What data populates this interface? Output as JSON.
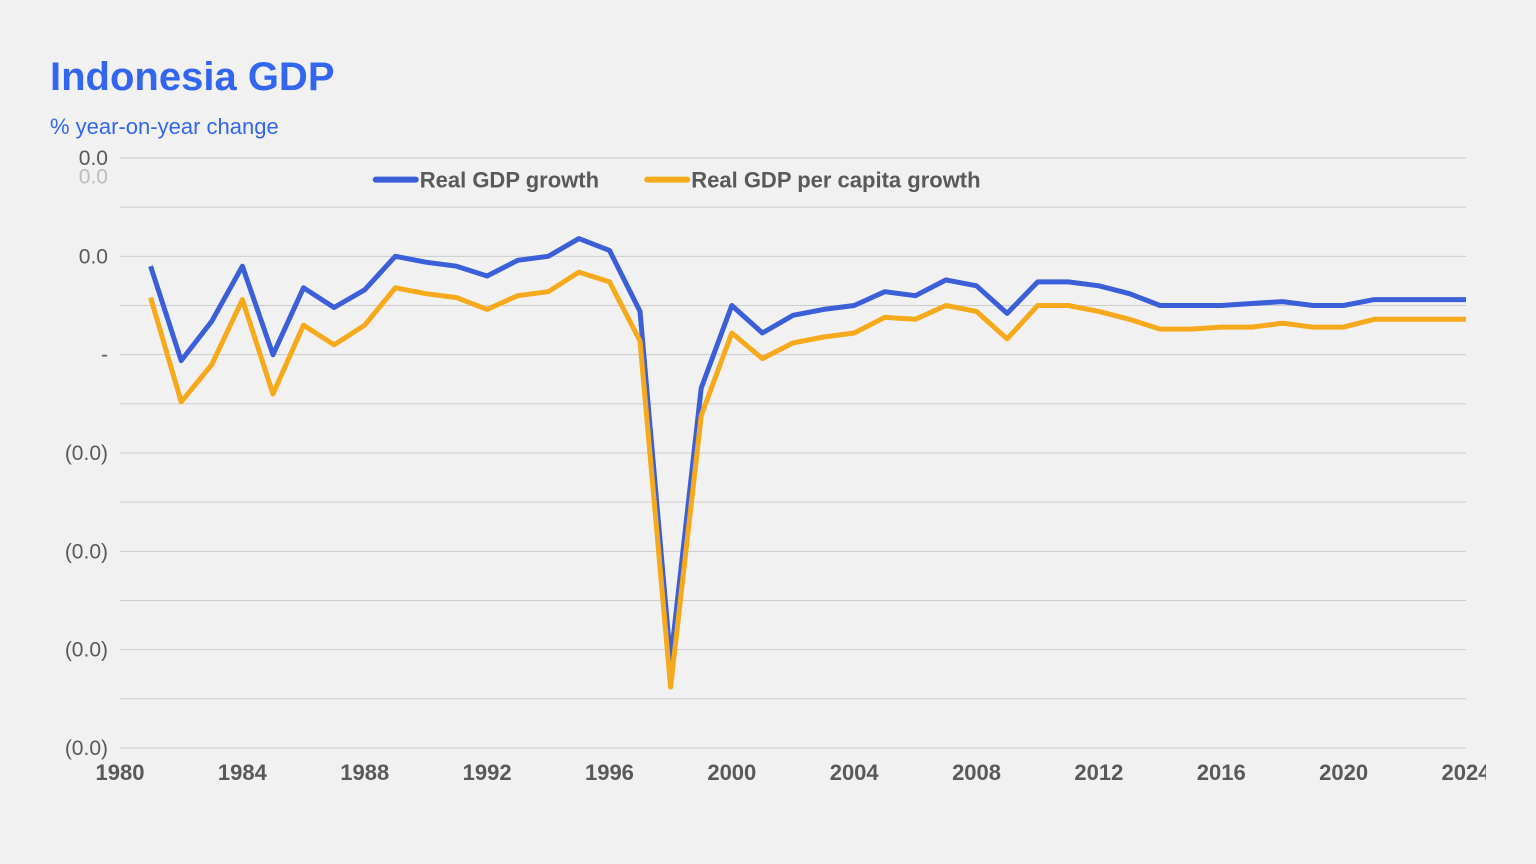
{
  "chart": {
    "type": "line",
    "title": "Indonesia  GDP",
    "subtitle": "% year-on-year change",
    "background_color": "#f1f1f1",
    "grid_color": "#cccccc",
    "title_color": "#3366ee",
    "axis_text_color": "#595959",
    "title_fontsize": 40,
    "subtitle_fontsize": 22,
    "axis_fontsize": 22,
    "line_width": 5,
    "xlim": [
      1980,
      2024
    ],
    "ylim": [
      -17.5,
      12.5
    ],
    "x_ticks": [
      1980,
      1984,
      1988,
      1992,
      1996,
      2000,
      2004,
      2008,
      2012,
      2016,
      2020,
      2024
    ],
    "y_ticks": [
      {
        "v": 12.5,
        "label": "0.0"
      },
      {
        "v": 10.0,
        "label": ""
      },
      {
        "v": 7.5,
        "label": "0.0"
      },
      {
        "v": 5.0,
        "label": ""
      },
      {
        "v": 2.5,
        "label": "-"
      },
      {
        "v": 0.0,
        "label": ""
      },
      {
        "v": -2.5,
        "label": "(0.0)"
      },
      {
        "v": -5.0,
        "label": ""
      },
      {
        "v": -7.5,
        "label": "(0.0)"
      },
      {
        "v": -10.0,
        "label": ""
      },
      {
        "v": -12.5,
        "label": "(0.0)"
      },
      {
        "v": -15.0,
        "label": ""
      },
      {
        "v": -17.5,
        "label": "(0.0)"
      }
    ],
    "y_label_extra": "0.0",
    "legend": {
      "items": [
        {
          "label": "Real GDP growth",
          "color": "#3b5fd8"
        },
        {
          "label": "Real GDP per capita growth",
          "color": "#f5a91b"
        }
      ]
    },
    "years": [
      1981,
      1982,
      1983,
      1984,
      1985,
      1986,
      1987,
      1988,
      1989,
      1990,
      1991,
      1992,
      1993,
      1994,
      1995,
      1996,
      1997,
      1998,
      1999,
      2000,
      2001,
      2002,
      2003,
      2004,
      2005,
      2006,
      2007,
      2008,
      2009,
      2010,
      2011,
      2012,
      2013,
      2014,
      2015,
      2016,
      2017,
      2018,
      2019,
      2020,
      2021,
      2022,
      2023,
      2024
    ],
    "series": [
      {
        "name": "Real GDP growth",
        "color": "#3b5fd8",
        "values": [
          7.0,
          2.2,
          4.2,
          7.0,
          2.5,
          5.9,
          4.9,
          5.8,
          7.5,
          7.2,
          7.0,
          6.5,
          7.3,
          7.5,
          8.4,
          7.8,
          4.7,
          -13.1,
          0.8,
          5.0,
          3.6,
          4.5,
          4.8,
          5.0,
          5.7,
          5.5,
          6.3,
          6.0,
          4.6,
          6.2,
          6.2,
          6.0,
          5.6,
          5.0,
          5.0,
          5.0,
          5.1,
          5.2,
          5.0,
          5.0,
          5.3,
          5.3,
          5.3,
          5.3
        ]
      },
      {
        "name": "Real GDP per capita growth",
        "color": "#f5a91b",
        "values": [
          5.4,
          0.1,
          2.0,
          5.3,
          0.5,
          4.0,
          3.0,
          4.0,
          5.9,
          5.6,
          5.4,
          4.8,
          5.5,
          5.7,
          6.7,
          6.2,
          3.2,
          -14.4,
          -0.6,
          3.6,
          2.3,
          3.1,
          3.4,
          3.6,
          4.4,
          4.3,
          5.0,
          4.7,
          3.3,
          5.0,
          5.0,
          4.7,
          4.3,
          3.8,
          3.8,
          3.9,
          3.9,
          4.1,
          3.9,
          3.9,
          4.3,
          4.3,
          4.3,
          4.3
        ]
      }
    ]
  }
}
